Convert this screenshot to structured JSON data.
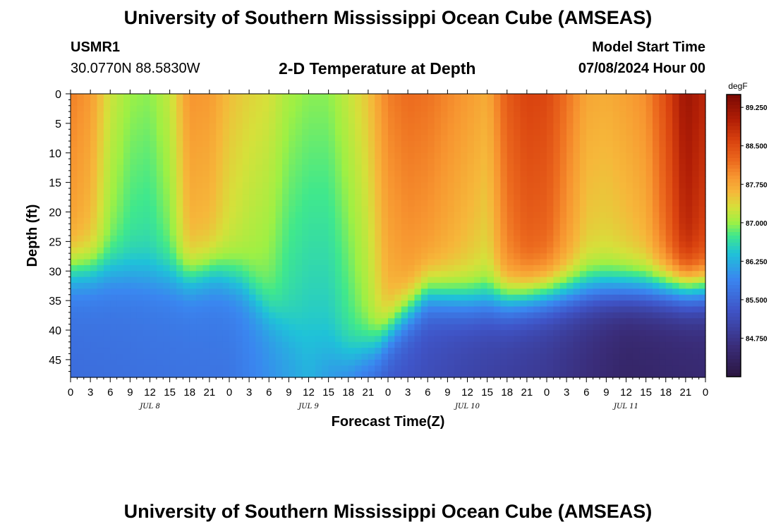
{
  "header": {
    "title": "University of Southern Mississippi Ocean Cube (AMSEAS)",
    "station": "USMR1",
    "coords": "30.0770N  88.5830W",
    "subtitle": "2-D Temperature at Depth",
    "model_start_label": "Model Start Time",
    "model_start_value": "07/08/2024 Hour 00"
  },
  "footer": {
    "title": "University of Southern Mississippi Ocean Cube (AMSEAS)"
  },
  "chart_data": {
    "type": "heatmap",
    "title": "2-D Temperature at Depth",
    "xlabel": "Forecast Time(Z)",
    "ylabel": "Depth (ft)",
    "x_hours_range": [
      0,
      96
    ],
    "x_tick_step_hours": 3,
    "x_tick_labels": [
      "0",
      "3",
      "6",
      "9",
      "12",
      "15",
      "18",
      "21",
      "0",
      "3",
      "6",
      "9",
      "12",
      "15",
      "18",
      "21",
      "0",
      "3",
      "6",
      "9",
      "12",
      "15",
      "18",
      "21",
      "0",
      "3",
      "6",
      "9",
      "12",
      "15",
      "18",
      "21",
      "0"
    ],
    "day_labels": [
      {
        "label": "JUL 8",
        "hour": 12
      },
      {
        "label": "JUL 9",
        "hour": 36
      },
      {
        "label": "JUL 10",
        "hour": 60
      },
      {
        "label": "JUL 11",
        "hour": 84
      }
    ],
    "y_range_ft": [
      0,
      48
    ],
    "y_ticks": [
      0,
      5,
      10,
      15,
      20,
      25,
      30,
      35,
      40,
      45
    ],
    "colorbar": {
      "unit": "degF",
      "range": [
        84.0,
        89.5
      ],
      "tick_values": [
        89.25,
        88.5,
        87.75,
        87.0,
        86.25,
        85.5,
        84.75
      ],
      "tick_labels": [
        "89.250",
        "88.500",
        "87.750",
        "87.000",
        "86.250",
        "85.500",
        "84.750"
      ],
      "stops": [
        {
          "v": 84.0,
          "color": "#2b1640"
        },
        {
          "v": 84.6,
          "color": "#3a2d7a"
        },
        {
          "v": 85.3,
          "color": "#3f55c8"
        },
        {
          "v": 85.9,
          "color": "#3a86f0"
        },
        {
          "v": 86.4,
          "color": "#1fc2d8"
        },
        {
          "v": 86.75,
          "color": "#40e88c"
        },
        {
          "v": 87.0,
          "color": "#9ef044"
        },
        {
          "v": 87.3,
          "color": "#d6e03a"
        },
        {
          "v": 87.6,
          "color": "#f6b73a"
        },
        {
          "v": 87.9,
          "color": "#f79530"
        },
        {
          "v": 88.2,
          "color": "#ec6a1e"
        },
        {
          "v": 88.6,
          "color": "#d9420f"
        },
        {
          "v": 89.0,
          "color": "#b11e06"
        },
        {
          "v": 89.5,
          "color": "#7a0803"
        }
      ]
    },
    "mixed_layer_temp_degF": [
      {
        "hour": 0,
        "temp": 88.05
      },
      {
        "hour": 3,
        "temp": 87.85
      },
      {
        "hour": 6,
        "temp": 87.25
      },
      {
        "hour": 9,
        "temp": 87.0
      },
      {
        "hour": 12,
        "temp": 86.95
      },
      {
        "hour": 15,
        "temp": 87.2
      },
      {
        "hour": 18,
        "temp": 87.9
      },
      {
        "hour": 21,
        "temp": 87.85
      },
      {
        "hour": 24,
        "temp": 87.55
      },
      {
        "hour": 27,
        "temp": 87.4
      },
      {
        "hour": 30,
        "temp": 87.3
      },
      {
        "hour": 33,
        "temp": 87.05
      },
      {
        "hour": 36,
        "temp": 86.95
      },
      {
        "hour": 39,
        "temp": 86.95
      },
      {
        "hour": 42,
        "temp": 87.2
      },
      {
        "hour": 45,
        "temp": 87.5
      },
      {
        "hour": 48,
        "temp": 88.05
      },
      {
        "hour": 51,
        "temp": 88.2
      },
      {
        "hour": 54,
        "temp": 88.15
      },
      {
        "hour": 57,
        "temp": 88.0
      },
      {
        "hour": 60,
        "temp": 87.85
      },
      {
        "hour": 63,
        "temp": 87.7
      },
      {
        "hour": 66,
        "temp": 88.35
      },
      {
        "hour": 69,
        "temp": 88.6
      },
      {
        "hour": 72,
        "temp": 88.55
      },
      {
        "hour": 75,
        "temp": 88.15
      },
      {
        "hour": 78,
        "temp": 87.75
      },
      {
        "hour": 81,
        "temp": 87.7
      },
      {
        "hour": 84,
        "temp": 87.8
      },
      {
        "hour": 87,
        "temp": 87.95
      },
      {
        "hour": 90,
        "temp": 88.5
      },
      {
        "hour": 93,
        "temp": 89.2
      },
      {
        "hour": 96,
        "temp": 88.9
      }
    ],
    "thermocline_depth_ft": [
      {
        "hour": 0,
        "depth": 30
      },
      {
        "hour": 6,
        "depth": 30
      },
      {
        "hour": 12,
        "depth": 31
      },
      {
        "hour": 18,
        "depth": 31
      },
      {
        "hour": 22,
        "depth": 30
      },
      {
        "hour": 26,
        "depth": 32
      },
      {
        "hour": 30,
        "depth": 37
      },
      {
        "hour": 34,
        "depth": 41
      },
      {
        "hour": 38,
        "depth": 44
      },
      {
        "hour": 42,
        "depth": 45
      },
      {
        "hour": 46,
        "depth": 43
      },
      {
        "hour": 50,
        "depth": 38
      },
      {
        "hour": 54,
        "depth": 34
      },
      {
        "hour": 60,
        "depth": 35
      },
      {
        "hour": 66,
        "depth": 35
      },
      {
        "hour": 72,
        "depth": 34
      },
      {
        "hour": 80,
        "depth": 33
      },
      {
        "hour": 88,
        "depth": 33
      },
      {
        "hour": 96,
        "depth": 33
      }
    ],
    "deep_layer_temp_degF": [
      {
        "hour": 0,
        "temp": 85.7
      },
      {
        "hour": 24,
        "temp": 85.8
      },
      {
        "hour": 36,
        "temp": 86.3
      },
      {
        "hour": 48,
        "temp": 85.4
      },
      {
        "hour": 60,
        "temp": 85.1
      },
      {
        "hour": 72,
        "temp": 84.9
      },
      {
        "hour": 84,
        "temp": 84.5
      },
      {
        "hour": 96,
        "temp": 84.6
      }
    ]
  }
}
